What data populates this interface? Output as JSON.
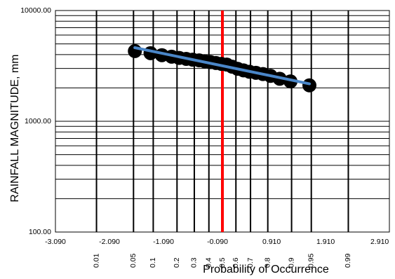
{
  "chart_data": {
    "type": "scatter",
    "title": "",
    "xlabel": "Probability of Occurrence",
    "ylabel": "RAINFALL MAGNITUDE, mm",
    "y_scale": "log",
    "ylim": [
      100,
      10000
    ],
    "xlim": [
      -3.09,
      3.09
    ],
    "grid": true,
    "legend": "none",
    "y_tick_labels": [
      "100.00",
      "1000.00",
      "10000.00"
    ],
    "x_tick_values": [
      -3.09,
      -2.09,
      -1.09,
      -0.09,
      0.91,
      1.91,
      2.91
    ],
    "x_tick_labels": [
      "-3.090",
      "-2.090",
      "-1.090",
      "-0.090",
      "0.910",
      "1.910",
      "2.910"
    ],
    "probability_lines": [
      {
        "label": "0.01",
        "z": -2.33
      },
      {
        "label": "0.05",
        "z": -1.645
      },
      {
        "label": "0.1",
        "z": -1.28
      },
      {
        "label": "0.2",
        "z": -0.84
      },
      {
        "label": "0.3",
        "z": -0.52
      },
      {
        "label": "0.4",
        "z": -0.25
      },
      {
        "label": "0.5",
        "z": 0.0
      },
      {
        "label": "0.6",
        "z": 0.25
      },
      {
        "label": "0.7",
        "z": 0.52
      },
      {
        "label": "0.8",
        "z": 0.84
      },
      {
        "label": "0.9",
        "z": 1.28
      },
      {
        "label": "0.95",
        "z": 1.645
      },
      {
        "label": "0.99",
        "z": 2.33
      }
    ],
    "median_line": {
      "z": 0.0,
      "color": "#ff0000"
    },
    "series": [
      {
        "kind": "points",
        "color": "#000000",
        "x": [
          -1.62,
          -1.33,
          -1.12,
          -0.94,
          -0.8,
          -0.67,
          -0.55,
          -0.43,
          -0.33,
          -0.22,
          -0.12,
          -0.02,
          0.08,
          0.18,
          0.28,
          0.39,
          0.5,
          0.62,
          0.75,
          0.89,
          1.06,
          1.26,
          1.61
        ],
        "y": [
          4300,
          4120,
          3950,
          3830,
          3730,
          3660,
          3600,
          3550,
          3480,
          3420,
          3360,
          3300,
          3250,
          3110,
          2980,
          2880,
          2800,
          2740,
          2670,
          2570,
          2420,
          2290,
          2110
        ]
      },
      {
        "kind": "fit-line",
        "color": "#4a86c8",
        "x": [
          -1.62,
          1.61
        ],
        "y": [
          4620,
          2180
        ]
      }
    ]
  }
}
